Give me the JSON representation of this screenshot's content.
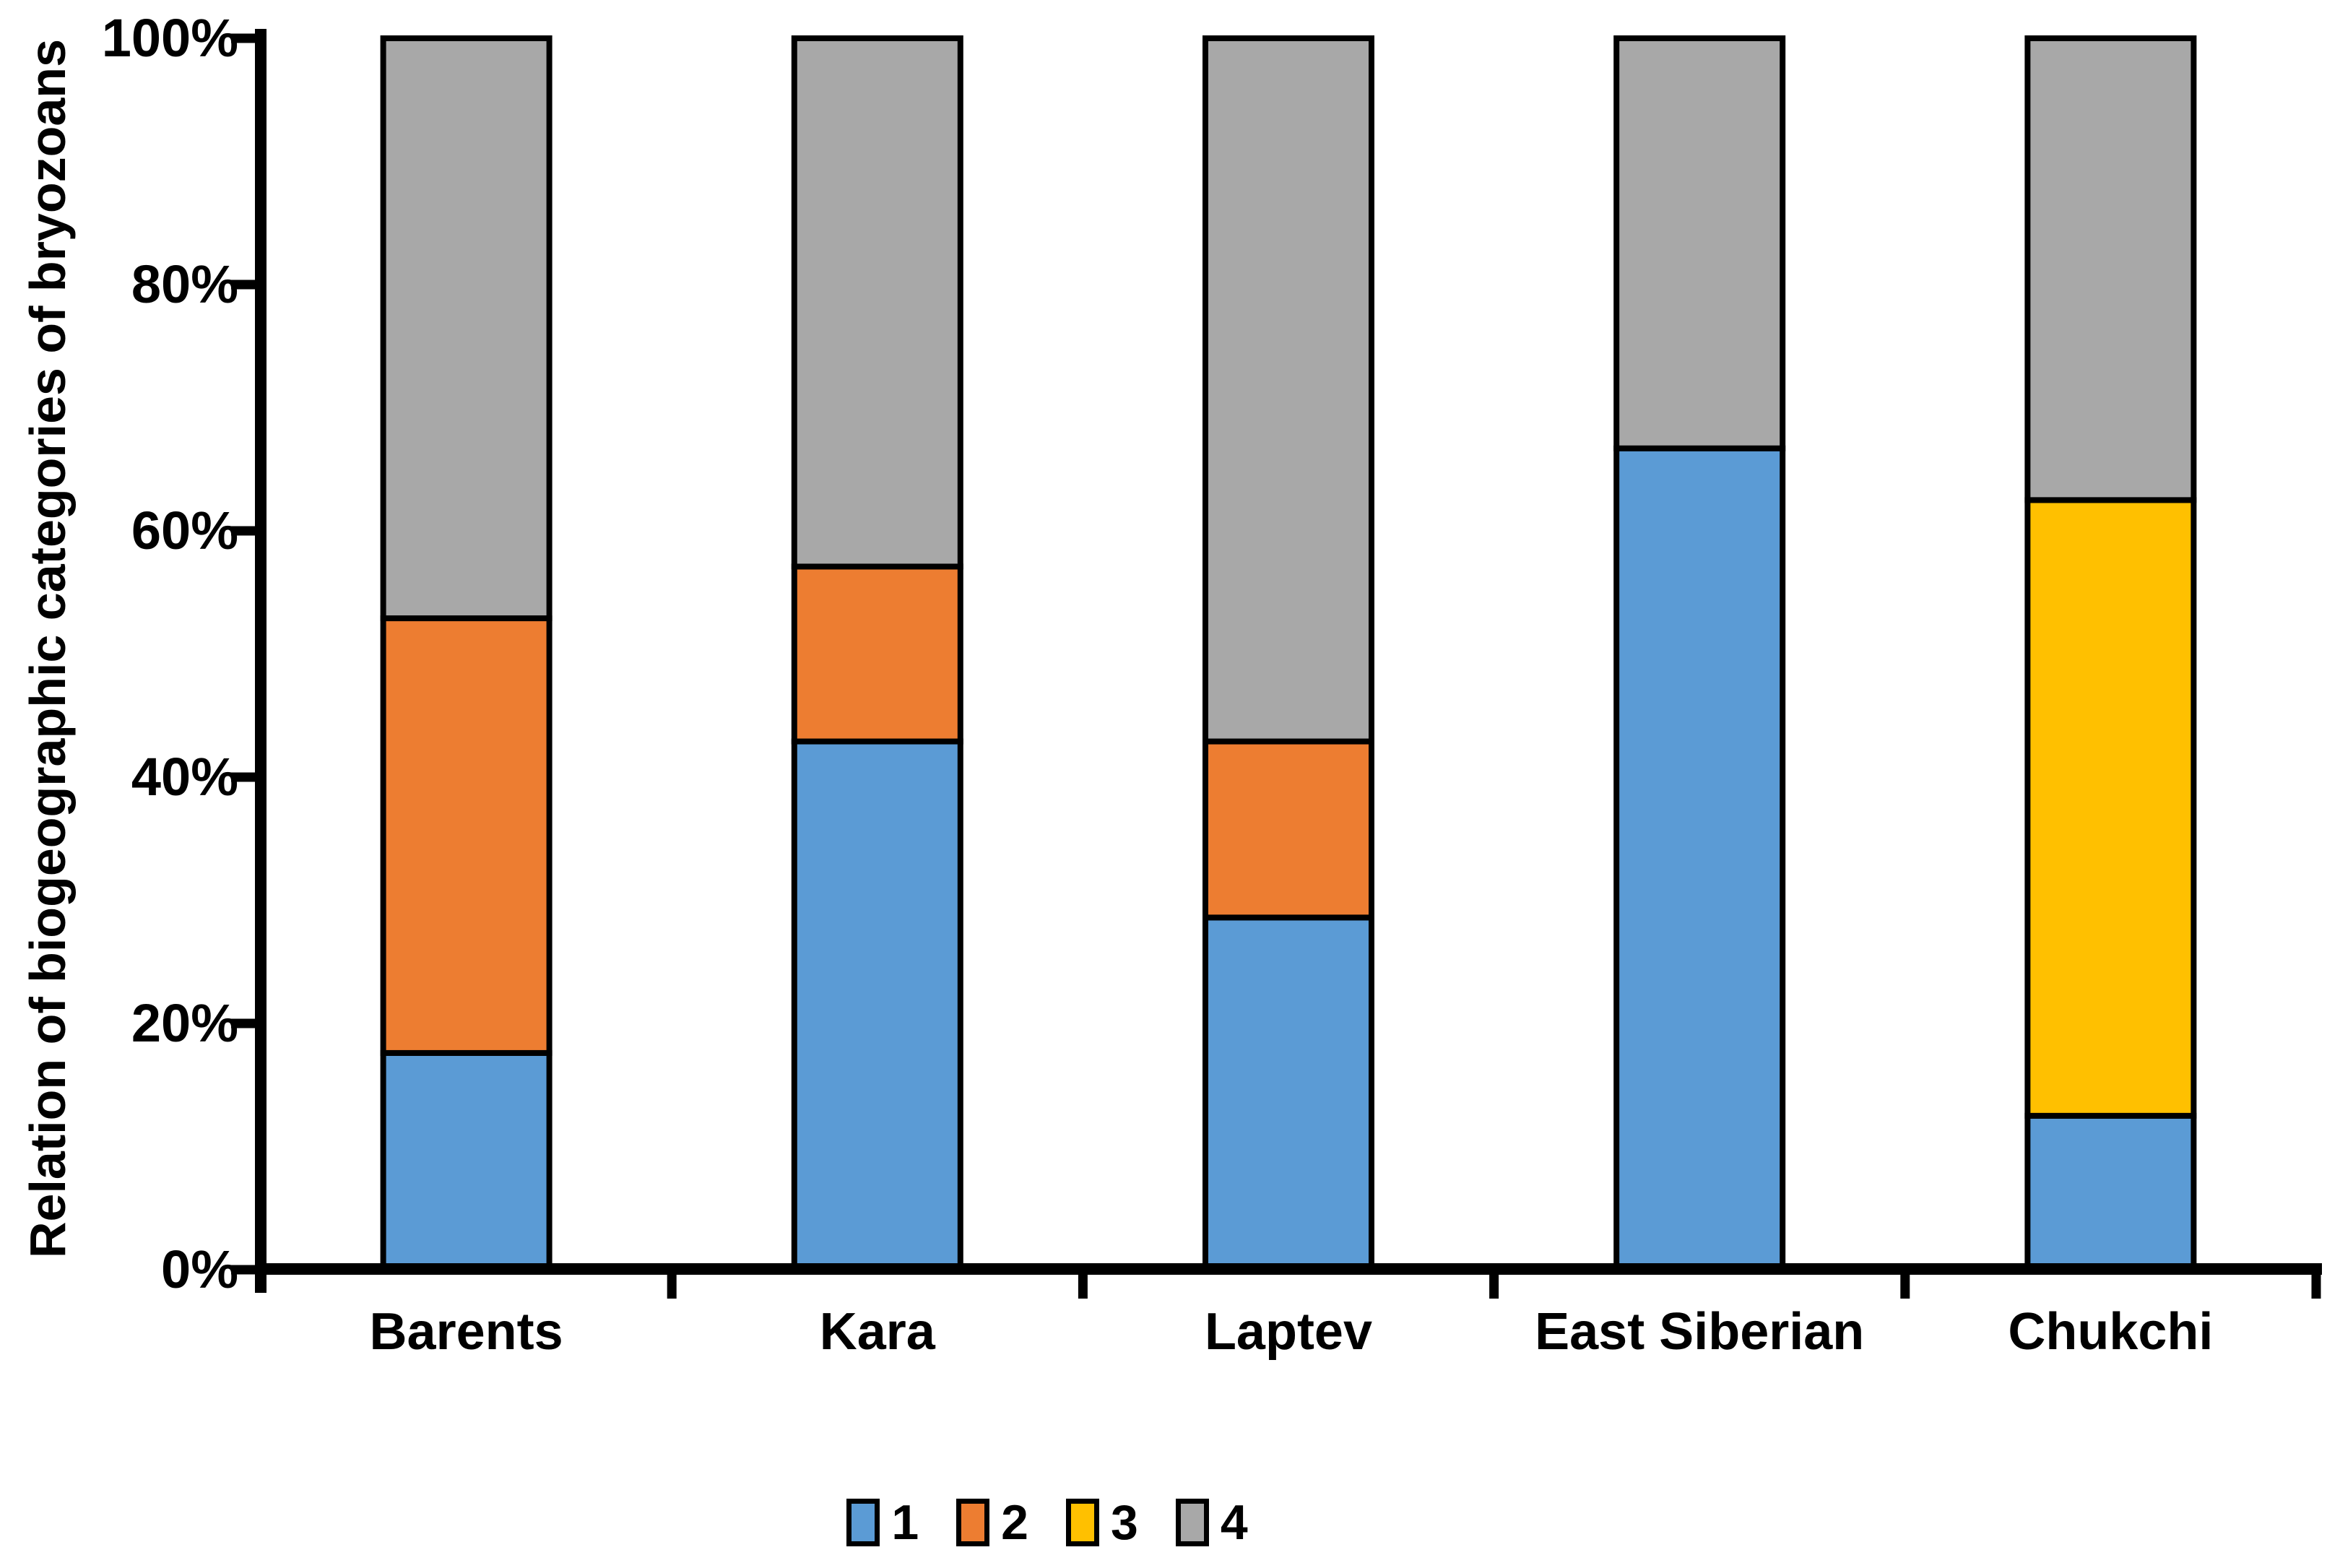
{
  "chart_data": {
    "type": "bar",
    "subtype": "stacked-100-percent",
    "title": "",
    "ylabel": "Relation of biogeographic categories of bryozoans",
    "xlabel": "",
    "categories": [
      "Barents",
      "Kara",
      "Laptev",
      "East Siberian",
      "Chukchi"
    ],
    "series": [
      {
        "name": "1",
        "color": "#5B9BD5",
        "values": [
          17.6,
          42.9,
          28.6,
          66.7,
          12.5
        ]
      },
      {
        "name": "2",
        "color": "#ED7D31",
        "values": [
          35.3,
          14.2,
          14.3,
          0,
          0
        ]
      },
      {
        "name": "3",
        "color": "#FFC000",
        "values": [
          0,
          0,
          0,
          0,
          50.0
        ]
      },
      {
        "name": "4",
        "color": "#A8A8A8",
        "values": [
          47.1,
          42.9,
          57.1,
          33.3,
          37.5
        ]
      }
    ],
    "y_ticks": [
      "0%",
      "20%",
      "40%",
      "60%",
      "80%",
      "100%"
    ],
    "ylim": [
      0,
      100
    ],
    "grid": false,
    "legend_position": "bottom",
    "bar_outline_color": "#000000",
    "axis_color": "#000000"
  }
}
